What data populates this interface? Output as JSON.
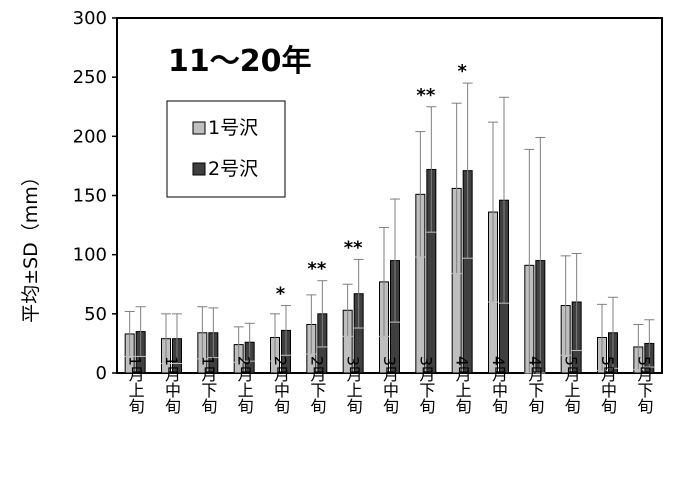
{
  "chart_data": {
    "type": "bar",
    "title": "11〜20年",
    "ylabel": "平均±SD（mm）",
    "xlabel": "",
    "ylim": [
      0,
      300
    ],
    "yticks": [
      0,
      50,
      100,
      150,
      200,
      250,
      300
    ],
    "categories": [
      "1月上旬",
      "1月中旬",
      "1月下旬",
      "2月上旬",
      "2月中旬",
      "2月下旬",
      "3月上旬",
      "3月中旬",
      "3月下旬",
      "4月上旬",
      "4月中旬",
      "4月下旬",
      "5月上旬",
      "5月中旬",
      "5月下旬"
    ],
    "series": [
      {
        "name": "1号沢",
        "color": "#bfbfbf",
        "values": [
          33,
          29,
          34,
          24,
          30,
          41,
          53,
          77,
          151,
          156,
          136,
          91,
          57,
          30,
          22
        ],
        "sd": [
          19,
          21,
          22,
          15,
          20,
          25,
          22,
          46,
          53,
          72,
          76,
          98,
          42,
          28,
          19
        ]
      },
      {
        "name": "2号沢",
        "color": "#3f3f3f",
        "values": [
          35,
          29,
          34,
          26,
          36,
          50,
          67,
          95,
          172,
          171,
          146,
          95,
          60,
          34,
          25
        ],
        "sd": [
          21,
          21,
          21,
          16,
          21,
          28,
          29,
          52,
          53,
          74,
          87,
          104,
          41,
          30,
          20
        ]
      }
    ],
    "annotations": [
      {
        "category_index": 4,
        "text": "*"
      },
      {
        "category_index": 5,
        "text": "**"
      },
      {
        "category_index": 6,
        "text": "**"
      },
      {
        "category_index": 8,
        "text": "**"
      },
      {
        "category_index": 9,
        "text": "*"
      }
    ],
    "grid": false,
    "legend": "upper-left"
  }
}
